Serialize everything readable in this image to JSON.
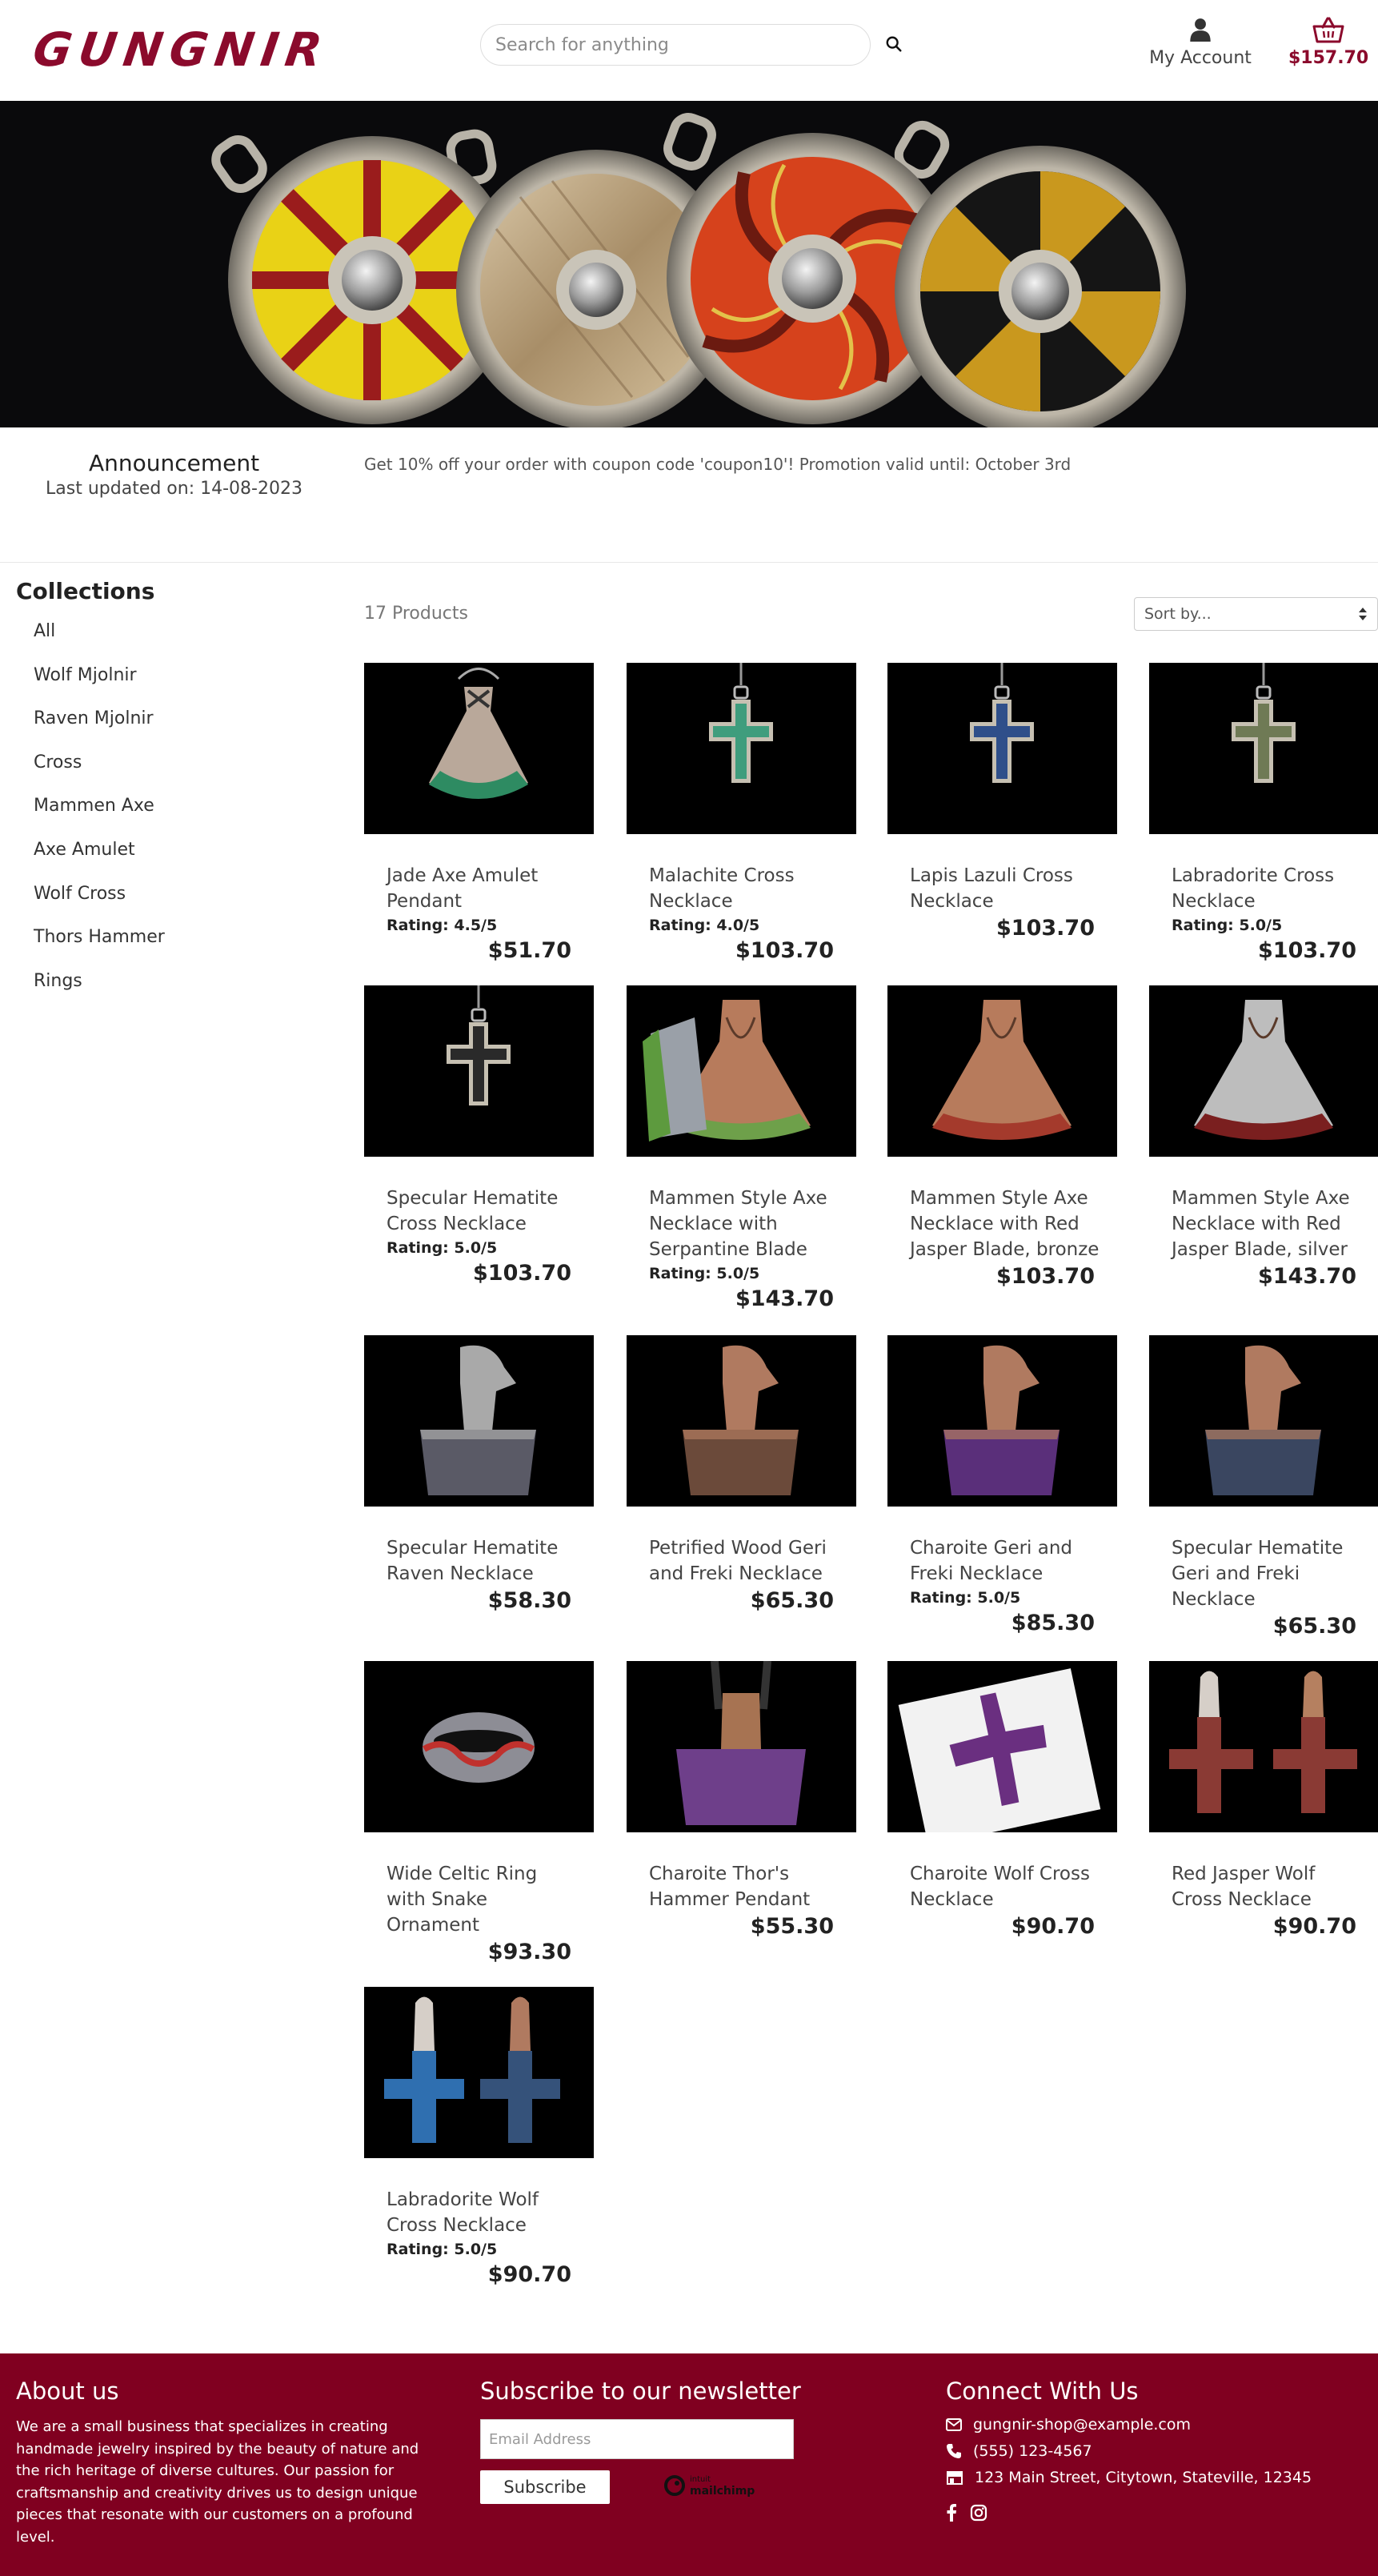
{
  "header": {
    "logo": "GUNGNIR",
    "search_placeholder": "Search for anything",
    "account_label": "My Account",
    "cart_total": "$157.70"
  },
  "announcement": {
    "title": "Announcement",
    "updated": "Last updated on: 14-08-2023",
    "text": "Get 10% off your order with coupon code 'coupon10'! Promotion valid until: October 3rd"
  },
  "collections": {
    "title": "Collections",
    "items": [
      "All",
      "Wolf Mjolnir",
      "Raven Mjolnir",
      "Cross",
      "Mammen Axe",
      "Axe Amulet",
      "Wolf Cross",
      "Thors Hammer",
      "Rings"
    ]
  },
  "toolbar": {
    "count": "17 Products",
    "sort_label": "Sort by..."
  },
  "products": [
    {
      "name": "Jade Axe Amulet Pendant",
      "rating": "Rating: 4.5/5",
      "price": "$51.70"
    },
    {
      "name": "Malachite Cross Necklace",
      "rating": "Rating: 4.0/5",
      "price": "$103.70"
    },
    {
      "name": "Lapis Lazuli Cross Necklace",
      "rating": "",
      "price": "$103.70"
    },
    {
      "name": "Labradorite Cross Necklace",
      "rating": "Rating: 5.0/5",
      "price": "$103.70"
    },
    {
      "name": "Specular Hematite Cross Necklace",
      "rating": "Rating: 5.0/5",
      "price": "$103.70"
    },
    {
      "name": "Mammen Style Axe Necklace with Serpantine Blade",
      "rating": "Rating: 5.0/5",
      "price": "$143.70"
    },
    {
      "name": "Mammen Style Axe Necklace with Red Jasper Blade, bronze",
      "rating": "",
      "price": "$103.70"
    },
    {
      "name": "Mammen Style Axe Necklace with Red Jasper Blade, silver",
      "rating": "",
      "price": "$143.70"
    },
    {
      "name": "Specular Hematite Raven Necklace",
      "rating": "",
      "price": "$58.30"
    },
    {
      "name": "Petrified Wood Geri and Freki Necklace",
      "rating": "",
      "price": "$65.30"
    },
    {
      "name": "Charoite Geri and Freki Necklace",
      "rating": "Rating: 5.0/5",
      "price": "$85.30"
    },
    {
      "name": "Specular Hematite Geri and Freki Necklace",
      "rating": "",
      "price": "$65.30"
    },
    {
      "name": "Wide Celtic Ring with Snake Ornament",
      "rating": "",
      "price": "$93.30"
    },
    {
      "name": "Charoite Thor's Hammer Pendant",
      "rating": "",
      "price": "$55.30"
    },
    {
      "name": "Charoite Wolf Cross Necklace",
      "rating": "",
      "price": "$90.70"
    },
    {
      "name": "Red Jasper Wolf Cross Necklace",
      "rating": "",
      "price": "$90.70"
    },
    {
      "name": "Labradorite Wolf Cross Necklace",
      "rating": "Rating: 5.0/5",
      "price": "$90.70"
    }
  ],
  "footer": {
    "about_title": "About us",
    "about_text": "We are a small business that specializes in creating handmade jewelry inspired by the beauty of nature and the rich heritage of diverse cultures. Our passion for craftsmanship and creativity drives us to design unique pieces that resonate with our customers on a profound level.",
    "newsletter_title": "Subscribe to our newsletter",
    "email_placeholder": "Email Address",
    "subscribe_label": "Subscribe",
    "mailchimp_intuit": "intuit",
    "mailchimp_label": "mailchimp",
    "connect_title": "Connect With Us",
    "email": "gungnir-shop@example.com",
    "phone": "(555) 123-4567",
    "address": "123 Main Street, Citytown, Stateville, 12345"
  }
}
